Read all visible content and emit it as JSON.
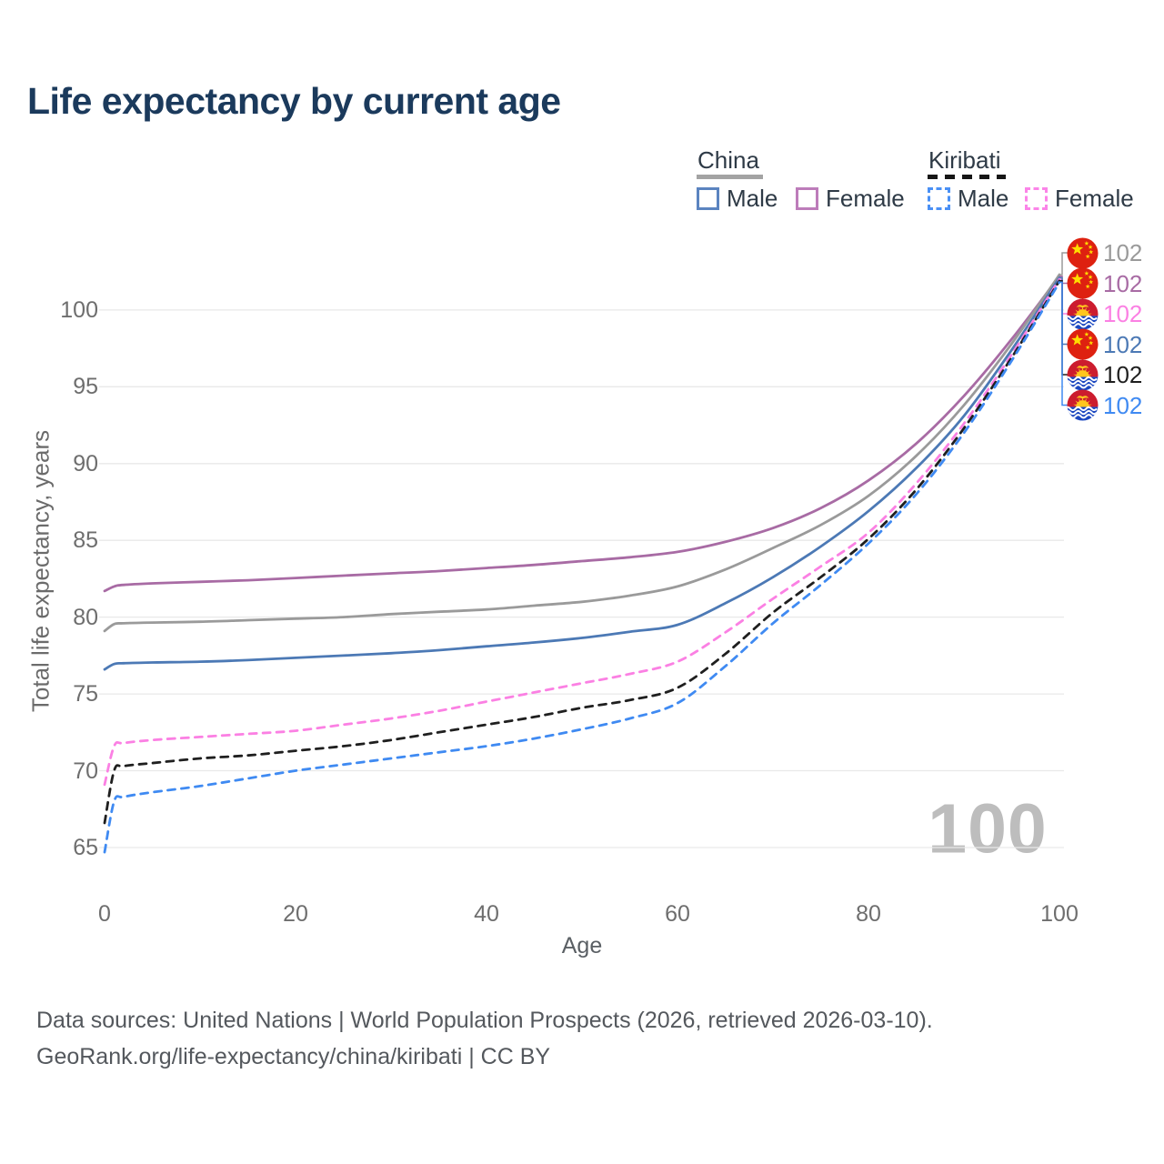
{
  "header": {
    "title": "Life expectancy by current age"
  },
  "legend": {
    "china": {
      "label": "China",
      "male": "Male",
      "female": "Female",
      "line_color": "#a3a3a3",
      "male_color": "#5b84c0",
      "female_color": "#bd7cba",
      "dashed": false
    },
    "kiribati": {
      "label": "Kiribati",
      "male": "Male",
      "female": "Female",
      "line_color": "#161616",
      "male_color": "#4a90f5",
      "female_color": "#fb84e8",
      "dashed": true
    }
  },
  "axes": {
    "x": {
      "title": "Age",
      "ticks": [
        0,
        20,
        40,
        60,
        80,
        100
      ]
    },
    "y": {
      "title": "Total life expectancy, years",
      "ticks": [
        65,
        70,
        75,
        80,
        85,
        90,
        95,
        100
      ]
    }
  },
  "watermark": {
    "text": "100"
  },
  "end_labels": [
    {
      "flag": "china",
      "value": "102",
      "color": "#9a9a9a"
    },
    {
      "flag": "china",
      "value": "102",
      "color": "#a86ba4"
    },
    {
      "flag": "kiribati",
      "value": "102",
      "color": "#fb80e3"
    },
    {
      "flag": "china",
      "value": "102",
      "color": "#4c79b5"
    },
    {
      "flag": "kiribati",
      "value": "102",
      "color": "#1f1f1f"
    },
    {
      "flag": "kiribati",
      "value": "102",
      "color": "#3f8af2"
    }
  ],
  "footer": {
    "line1": "Data sources: United Nations | World Population Prospects (2026, retrieved 2026-03-10).",
    "line2": "GeoRank.org/life-expectancy/china/kiribati | CC BY"
  },
  "chart_data": {
    "type": "line",
    "title": "Life expectancy by current age",
    "xlabel": "Age",
    "ylabel": "Total life expectancy, years",
    "xlim": [
      0,
      100
    ],
    "ylim": [
      65,
      102.5
    ],
    "grid": "horizontal",
    "legend_position": "top-right",
    "x": [
      0,
      1,
      2,
      5,
      10,
      15,
      20,
      25,
      30,
      35,
      40,
      45,
      50,
      55,
      60,
      65,
      70,
      75,
      80,
      85,
      90,
      95,
      100
    ],
    "series": [
      {
        "name": "China Female",
        "country": "china",
        "sex": "female",
        "color": "#a86ba4",
        "dashed": false,
        "values": [
          81.7,
          82.0,
          82.1,
          82.2,
          82.3,
          82.4,
          82.55,
          82.7,
          82.85,
          83.0,
          83.2,
          83.4,
          83.65,
          83.9,
          84.25,
          84.9,
          85.8,
          87.1,
          88.9,
          91.3,
          94.4,
          98.1,
          102.2
        ]
      },
      {
        "name": "China Total",
        "country": "china",
        "sex": "both",
        "color": "#9a9a9a",
        "dashed": false,
        "values": [
          79.1,
          79.55,
          79.6,
          79.65,
          79.7,
          79.8,
          79.9,
          80.0,
          80.2,
          80.35,
          80.5,
          80.75,
          81.0,
          81.4,
          82.0,
          83.1,
          84.5,
          86.0,
          87.9,
          90.5,
          93.8,
          97.8,
          102.3
        ]
      },
      {
        "name": "China Male",
        "country": "china",
        "sex": "male",
        "color": "#4c79b5",
        "dashed": false,
        "values": [
          76.6,
          76.95,
          77.0,
          77.05,
          77.1,
          77.2,
          77.35,
          77.5,
          77.65,
          77.85,
          78.1,
          78.35,
          78.65,
          79.05,
          79.5,
          80.9,
          82.6,
          84.6,
          86.9,
          89.7,
          93.1,
          97.4,
          102.1
        ]
      },
      {
        "name": "Kiribati Female",
        "country": "kiribati",
        "sex": "female",
        "color": "#fb80e3",
        "dashed": true,
        "values": [
          69.1,
          71.6,
          71.8,
          72.0,
          72.2,
          72.4,
          72.6,
          73.0,
          73.4,
          73.9,
          74.5,
          75.1,
          75.7,
          76.3,
          77.1,
          79.0,
          81.2,
          83.3,
          85.5,
          88.7,
          92.6,
          97.1,
          102.0
        ]
      },
      {
        "name": "Kiribati Total",
        "country": "kiribati",
        "sex": "both",
        "color": "#1f1f1f",
        "dashed": true,
        "values": [
          66.6,
          70.0,
          70.3,
          70.5,
          70.8,
          71.0,
          71.3,
          71.6,
          72.0,
          72.5,
          73.0,
          73.5,
          74.1,
          74.6,
          75.4,
          77.6,
          80.3,
          82.6,
          85.1,
          88.3,
          92.3,
          96.9,
          101.9
        ]
      },
      {
        "name": "Kiribati Male",
        "country": "kiribati",
        "sex": "male",
        "color": "#3f8af2",
        "dashed": true,
        "values": [
          64.7,
          68.0,
          68.3,
          68.6,
          69.0,
          69.5,
          70.0,
          70.4,
          70.8,
          71.2,
          71.6,
          72.1,
          72.7,
          73.4,
          74.4,
          76.8,
          79.6,
          82.1,
          84.8,
          88.0,
          92.0,
          96.7,
          101.8
        ]
      }
    ],
    "end_label_order": [
      "China Total",
      "China Female",
      "Kiribati Female",
      "China Male",
      "Kiribati Total",
      "Kiribati Male"
    ],
    "end_label_values": [
      102,
      102,
      102,
      102,
      102,
      102
    ]
  }
}
